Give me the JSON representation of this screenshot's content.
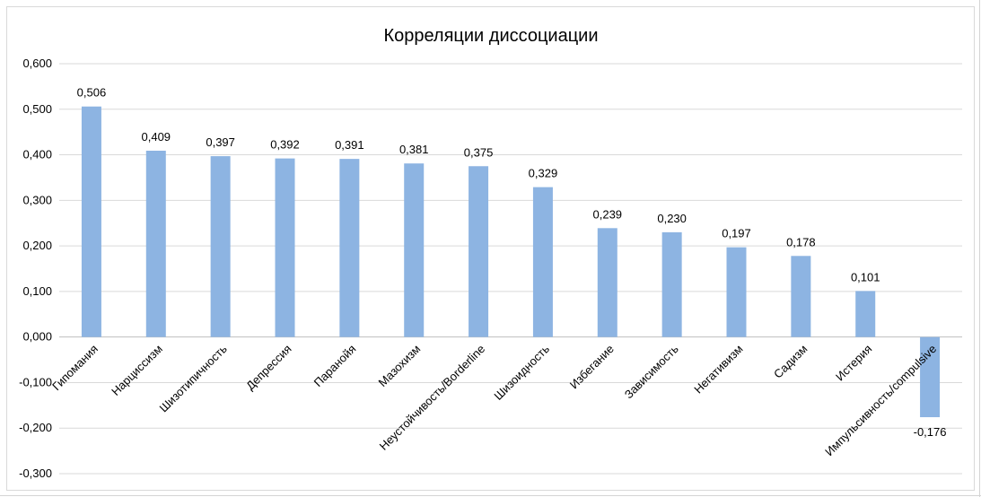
{
  "chart_data": {
    "type": "bar",
    "title": "Корреляции диссоциации",
    "categories": [
      "Гипомания",
      "Нарциссизм",
      "Шизотипичность",
      "Депрессия",
      "Паранойя",
      "Мазохизм",
      "Неустойчивость/Borderline",
      "Шизоидность",
      "Избегание",
      "Зависимость",
      "Негативизм",
      "Садизм",
      "Истерия",
      "Импульсивность/compulsive"
    ],
    "values": [
      0.506,
      0.409,
      0.397,
      0.392,
      0.391,
      0.381,
      0.375,
      0.329,
      0.239,
      0.23,
      0.197,
      0.178,
      0.101,
      -0.176
    ],
    "data_labels": [
      "0,506",
      "0,409",
      "0,397",
      "0,392",
      "0,391",
      "0,381",
      "0,375",
      "0,329",
      "0,239",
      "0,230",
      "0,197",
      "0,178",
      "0,101",
      "-0,176"
    ],
    "y_ticks": [
      0.6,
      0.5,
      0.4,
      0.3,
      0.2,
      0.1,
      0.0,
      -0.1,
      -0.2,
      -0.3
    ],
    "y_tick_labels": [
      "0,600",
      "0,500",
      "0,400",
      "0,300",
      "0,200",
      "0,100",
      "0,000",
      "-0,100",
      "-0,200",
      "-0,300"
    ],
    "ylim": [
      -0.3,
      0.6
    ],
    "grid": true,
    "legend": "none",
    "xlabel": "",
    "ylabel": "",
    "bar_color": "#8db4e2",
    "grid_color": "#d9d9d9",
    "axis_color": "#bfbfbf"
  }
}
